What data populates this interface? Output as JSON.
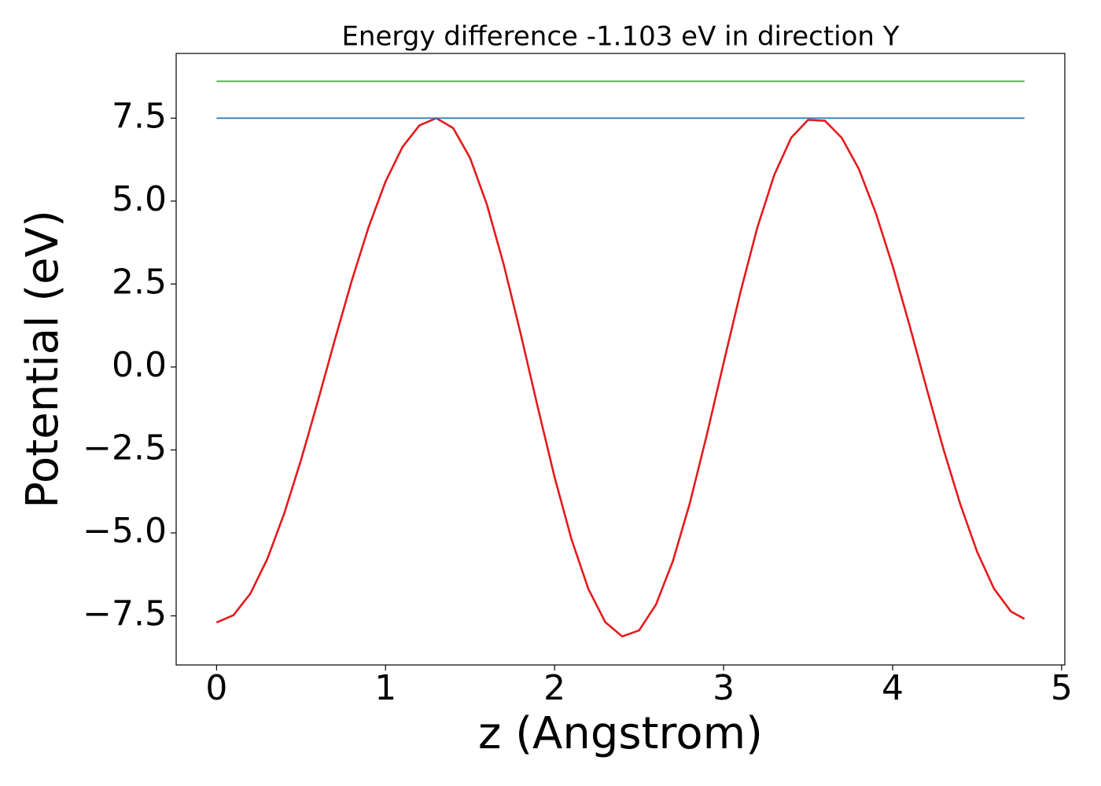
{
  "chart_data": {
    "type": "line",
    "title": "Energy difference -1.103 eV in direction Y",
    "x_label": "z (Angstrom)",
    "y_label": "Potential (eV)",
    "xlim": [
      -0.239,
      5.019
    ],
    "ylim": [
      -8.98,
      9.45
    ],
    "xticks": [
      0,
      1,
      2,
      3,
      4,
      5
    ],
    "yticks": [
      {
        "value": -7.5,
        "label": "−7.5"
      },
      {
        "value": -5,
        "label": "−5.0"
      },
      {
        "value": -2.5,
        "label": "−2.5"
      },
      {
        "value": 0,
        "label": "0.0"
      },
      2.5,
      {
        "value": 5,
        "label": "5.0"
      },
      7.5
    ],
    "grid": false,
    "series": [
      {
        "color": "#e41a1c",
        "x": [
          0,
          0.1,
          0.2,
          0.3,
          0.4,
          0.5,
          0.6,
          0.7,
          0.8,
          0.9,
          1.0,
          1.1,
          1.2,
          1.3,
          1.4,
          1.5,
          1.6,
          1.7,
          1.8,
          1.9,
          2.0,
          2.1,
          2.2,
          2.3,
          2.4,
          2.5,
          2.6,
          2.7,
          2.8,
          2.9,
          3.0,
          3.1,
          3.2,
          3.3,
          3.4,
          3.5,
          3.6,
          3.7,
          3.8,
          3.9,
          4.0,
          4.1,
          4.2,
          4.3,
          4.4,
          4.5,
          4.6,
          4.7,
          4.78
        ],
        "values": [
          -7.7,
          -7.48,
          -6.83,
          -5.79,
          -4.42,
          -2.8,
          -1.02,
          0.82,
          2.6,
          4.22,
          5.59,
          6.63,
          7.28,
          7.5,
          7.2,
          6.3,
          4.89,
          3.07,
          0.99,
          -1.2,
          -3.32,
          -5.19,
          -6.69,
          -7.69,
          -8.12,
          -7.94,
          -7.16,
          -5.85,
          -4.11,
          -2.06,
          0.12,
          2.26,
          4.21,
          5.79,
          6.91,
          7.45,
          7.42,
          6.9,
          5.97,
          4.65,
          3.05,
          1.26,
          -0.62,
          -2.46,
          -4.13,
          -5.57,
          -6.68,
          -7.37,
          -7.59
        ]
      },
      {
        "color": "#377eb8",
        "x": [
          0,
          4.78
        ],
        "values": [
          7.5,
          7.5
        ]
      },
      {
        "color": "#4daf4a",
        "x": [
          0,
          4.78
        ],
        "values": [
          8.61,
          8.61
        ]
      }
    ]
  }
}
